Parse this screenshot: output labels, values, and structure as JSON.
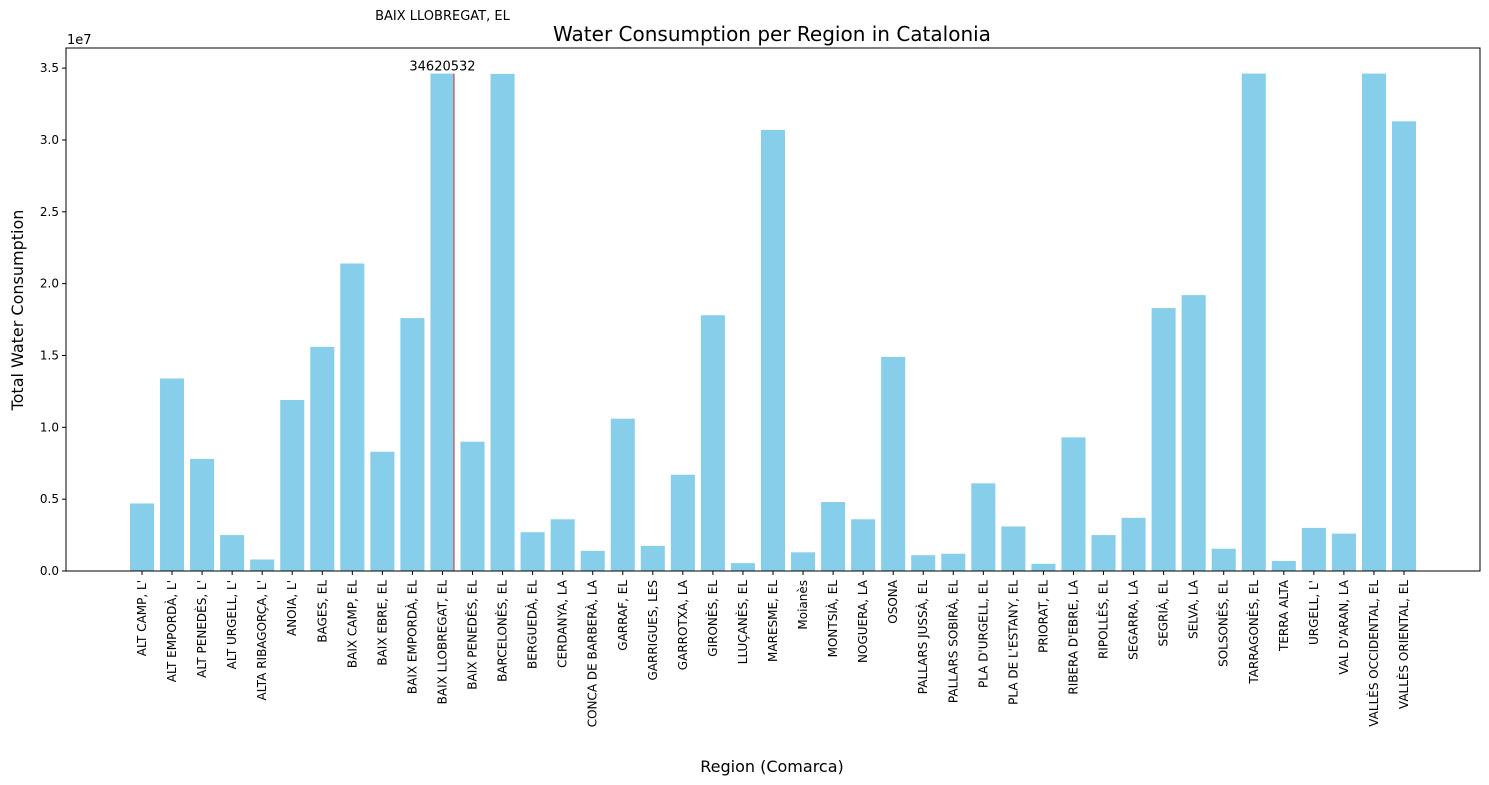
{
  "chart_data": {
    "type": "bar",
    "title": "Water Consumption per Region in Catalonia",
    "xlabel": "Region (Comarca)",
    "ylabel": "Total Water Consumption",
    "y_multiplier": "1e7",
    "ylim": [
      0,
      36400000
    ],
    "yticks": [
      0,
      5000000,
      10000000,
      15000000,
      20000000,
      25000000,
      30000000,
      35000000
    ],
    "ytick_labels": [
      "0.0",
      "0.5",
      "1.0",
      "1.5",
      "2.0",
      "2.5",
      "3.0",
      "3.5"
    ],
    "grid": false,
    "bar_color": "#87ceeb",
    "highlight_line_color": "#d62728",
    "categories": [
      "ALT CAMP, L'",
      "ALT EMPORDÀ, L'",
      "ALT PENEDÈS, L'",
      "ALT URGELL, L'",
      "ALTA RIBAGORÇA, L'",
      "ANOIA, L'",
      "BAGES, EL",
      "BAIX CAMP, EL",
      "BAIX EBRE, EL",
      "BAIX EMPORDÀ, EL",
      "BAIX LLOBREGAT, EL",
      "BAIX PENEDÈS, EL",
      "BARCELONÈS, EL",
      "BERGUEDÀ, EL",
      "CERDANYA, LA",
      "CONCA DE BARBERÀ, LA",
      "GARRAF, EL",
      "GARRIGUES, LES",
      "GARROTXA, LA",
      "GIRONÈS, EL",
      "LLUÇANÈS, EL",
      "MARESME, EL",
      "Moianès",
      "MONTSIÀ, EL",
      "NOGUERA, LA",
      "OSONA",
      "PALLARS JUSSÀ, EL",
      "PALLARS SOBIRÀ, EL",
      "PLA D'URGELL, EL",
      "PLA DE L'ESTANY, EL",
      "PRIORAT, EL",
      "RIBERA D'EBRE, LA",
      "RIPOLLÈS, EL",
      "SEGARRA, LA",
      "SEGRIÀ, EL",
      "SELVA, LA",
      "SOLSONÈS, EL",
      "TARRAGONÈS, EL",
      "TERRA ALTA",
      "URGELL, L'",
      "VAL D'ARAN, LA",
      "VALLÈS OCCIDENTAL, EL",
      "VALLÈS ORIENTAL, EL"
    ],
    "values": [
      4700000,
      13400000,
      7800000,
      2500000,
      800000,
      11900000,
      15600000,
      21400000,
      8300000,
      17600000,
      34620532,
      9000000,
      34600000,
      2700000,
      3600000,
      1400000,
      10600000,
      1750000,
      6700000,
      17800000,
      550000,
      30700000,
      1300000,
      4800000,
      3600000,
      14900000,
      1100000,
      1200000,
      6100000,
      3100000,
      500000,
      9300000,
      2500000,
      3700000,
      18300000,
      19200000,
      1550000,
      34620000,
      700000,
      3000000,
      2600000,
      34620000,
      31300000
    ],
    "annotations": [
      {
        "category": "BAIX LLOBREGAT, EL",
        "value_label": "34620532",
        "name_label": "BAIX LLOBREGAT, EL"
      }
    ]
  }
}
